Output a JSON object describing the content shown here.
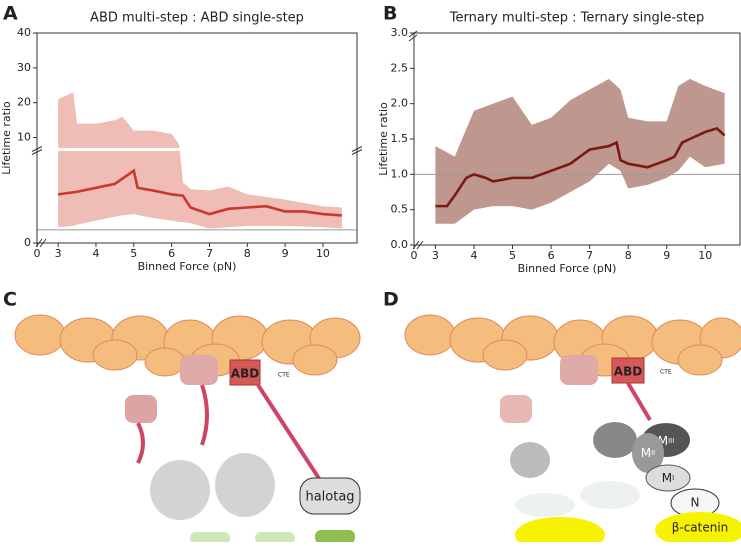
{
  "chart_data": [
    {
      "type": "line",
      "panel": "A",
      "title": "ABD multi-step : ABD single-step",
      "xlabel": "Binned Force (pN)",
      "ylabel": "Lifetime ratio",
      "xlim": [
        0,
        10.9
      ],
      "xbreak": 2.6,
      "xticks": [
        0,
        3,
        4,
        5,
        6,
        7,
        8,
        9,
        10
      ],
      "ylim": [
        0,
        40
      ],
      "ybreak": 7,
      "yticks": [
        0,
        10,
        20,
        30,
        40
      ],
      "reference_line": 1,
      "line": {
        "color": "#c9392b",
        "x": [
          3,
          3.5,
          4,
          4.5,
          5,
          5.1,
          5.5,
          6,
          6.3,
          6.5,
          7,
          7.5,
          8,
          8.5,
          9,
          9.5,
          10,
          10.5
        ],
        "values": [
          3.7,
          3.9,
          4.2,
          4.5,
          5.5,
          4.2,
          4.0,
          3.7,
          3.6,
          2.7,
          2.2,
          2.6,
          2.7,
          2.8,
          2.4,
          2.4,
          2.2,
          2.1
        ]
      },
      "band": {
        "color": "#eaa79e",
        "x": [
          3,
          3.4,
          3.5,
          4,
          4.5,
          4.7,
          5,
          5.5,
          6,
          6.2,
          6.3,
          6.5,
          7,
          7.5,
          8,
          9,
          10,
          10.5
        ],
        "upper": [
          21,
          23,
          14,
          14,
          15,
          16,
          12,
          12,
          11,
          8,
          4.6,
          4.1,
          4.0,
          4.3,
          3.7,
          3.3,
          2.8,
          2.7
        ],
        "lower": [
          1.2,
          1.3,
          1.4,
          1.7,
          2.0,
          2.1,
          2.2,
          1.9,
          1.7,
          1.6,
          1.6,
          1.5,
          1.1,
          1.2,
          1.3,
          1.3,
          1.2,
          1.1
        ]
      }
    },
    {
      "type": "line",
      "panel": "B",
      "title": "Ternary multi-step : Ternary single-step",
      "xlabel": "Binned Force (pN)",
      "ylabel": "Lifetime ratio",
      "xlim": [
        0,
        10.9
      ],
      "xbreak": 2.6,
      "xticks": [
        0,
        3,
        4,
        5,
        6,
        7,
        8,
        9,
        10
      ],
      "ylim": [
        0,
        3
      ],
      "yticks": [
        {
          "value": 0,
          "label": "0.0"
        },
        0.5,
        {
          "value": 1,
          "label": "1.0"
        },
        1.5,
        {
          "value": 2,
          "label": "2.0"
        },
        2.5,
        {
          "value": 3,
          "label": "3.0"
        }
      ],
      "reference_line": 1,
      "line": {
        "color": "#7a1a10",
        "x": [
          3,
          3.3,
          3.5,
          3.8,
          4,
          4.3,
          4.5,
          5,
          5.5,
          6,
          6.5,
          7,
          7.5,
          7.7,
          7.8,
          8,
          8.5,
          9,
          9.2,
          9.4,
          9.6,
          10,
          10.3,
          10.5
        ],
        "values": [
          0.55,
          0.55,
          0.7,
          0.95,
          1.0,
          0.95,
          0.9,
          0.95,
          0.95,
          1.05,
          1.15,
          1.35,
          1.4,
          1.45,
          1.2,
          1.15,
          1.1,
          1.2,
          1.25,
          1.45,
          1.5,
          1.6,
          1.65,
          1.55
        ]
      },
      "band": {
        "color": "#a87468",
        "x": [
          3,
          3.5,
          4,
          4.5,
          5,
          5.5,
          6,
          6.5,
          7,
          7.5,
          7.8,
          8,
          8.5,
          9,
          9.3,
          9.6,
          10,
          10.5
        ],
        "upper": [
          1.4,
          1.25,
          1.9,
          2.0,
          2.1,
          1.7,
          1.8,
          2.05,
          2.2,
          2.35,
          2.2,
          1.8,
          1.75,
          1.75,
          2.25,
          2.35,
          2.25,
          2.15
        ],
        "lower": [
          0.3,
          0.3,
          0.5,
          0.55,
          0.55,
          0.5,
          0.6,
          0.75,
          0.9,
          1.15,
          1.05,
          0.8,
          0.85,
          0.95,
          1.05,
          1.25,
          1.1,
          1.15
        ]
      }
    }
  ],
  "diagrams": [
    {
      "panel": "C",
      "abd": "ABD",
      "cte": "CTE",
      "halotag": "halotag"
    },
    {
      "panel": "D",
      "abd": "ABD",
      "cte": "CTE",
      "m3": {
        "base": "M",
        "sub": "III"
      },
      "m2": {
        "base": "M",
        "sub": "II"
      },
      "m1": {
        "base": "M",
        "sub": "I"
      },
      "n": "N",
      "catenin": "β-catenin"
    }
  ]
}
